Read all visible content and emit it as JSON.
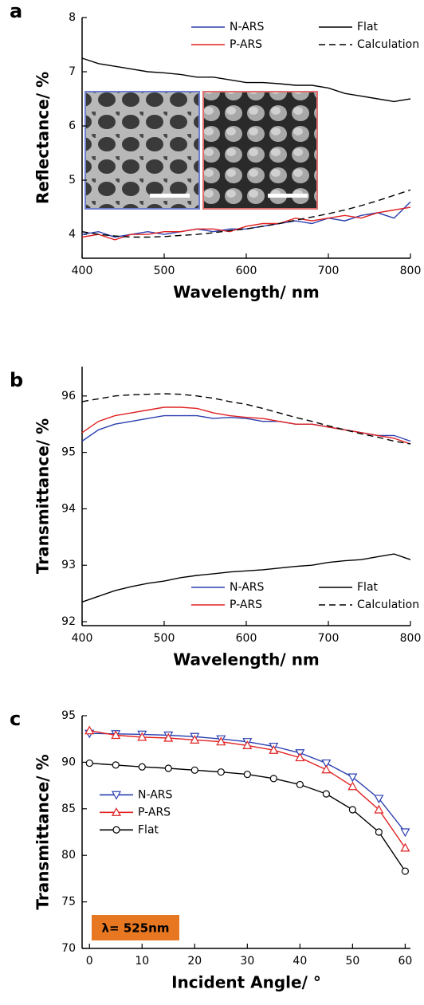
{
  "chart_data": [
    {
      "type": "line",
      "panel_label": "a",
      "x_label": "Wavelength/ nm",
      "y_label": "Reflectance/ %",
      "x": [
        400,
        420,
        440,
        460,
        480,
        500,
        520,
        540,
        560,
        580,
        600,
        620,
        640,
        660,
        680,
        700,
        720,
        740,
        760,
        780,
        800
      ],
      "xlim": [
        400,
        800
      ],
      "xticks": [
        400,
        500,
        600,
        700,
        800
      ],
      "ylim": [
        3.56,
        8
      ],
      "yticks": [
        4,
        5,
        6,
        7,
        8
      ],
      "legend": "top-right",
      "series": [
        {
          "name": "N-ARS",
          "color": "#2b3fb0",
          "style": "solid",
          "values": [
            4.0,
            4.05,
            3.95,
            4.0,
            4.05,
            4.0,
            4.05,
            4.1,
            4.05,
            4.1,
            4.1,
            4.15,
            4.2,
            4.25,
            4.2,
            4.3,
            4.25,
            4.35,
            4.4,
            4.3,
            4.6
          ]
        },
        {
          "name": "P-ARS",
          "color": "#e02020",
          "style": "solid",
          "values": [
            3.95,
            4.0,
            3.9,
            4.0,
            4.0,
            4.05,
            4.05,
            4.1,
            4.1,
            4.05,
            4.15,
            4.2,
            4.2,
            4.3,
            4.25,
            4.3,
            4.35,
            4.3,
            4.4,
            4.45,
            4.5
          ]
        },
        {
          "name": "Flat",
          "color": "#000000",
          "style": "solid",
          "values": [
            7.25,
            7.15,
            7.1,
            7.05,
            7.0,
            6.98,
            6.95,
            6.9,
            6.9,
            6.85,
            6.8,
            6.8,
            6.78,
            6.75,
            6.75,
            6.7,
            6.6,
            6.55,
            6.5,
            6.45,
            6.5
          ]
        },
        {
          "name": "Calculation",
          "color": "#000000",
          "style": "dashed",
          "values": [
            4.05,
            4.0,
            3.97,
            3.95,
            3.95,
            3.96,
            3.98,
            4.0,
            4.03,
            4.07,
            4.1,
            4.15,
            4.2,
            4.26,
            4.32,
            4.38,
            4.45,
            4.53,
            4.62,
            4.72,
            4.82
          ]
        }
      ]
    },
    {
      "type": "line",
      "panel_label": "b",
      "x_label": "Wavelength/ nm",
      "y_label": "Transmittance/ %",
      "x": [
        400,
        420,
        440,
        460,
        480,
        500,
        520,
        540,
        560,
        580,
        600,
        620,
        640,
        660,
        680,
        700,
        720,
        740,
        760,
        780,
        800
      ],
      "xlim": [
        400,
        800
      ],
      "xticks": [
        400,
        500,
        600,
        700,
        800
      ],
      "ylim": [
        91.93,
        96.52
      ],
      "yticks": [
        92,
        93,
        94,
        95,
        96
      ],
      "legend": "bottom-right",
      "series": [
        {
          "name": "N-ARS",
          "color": "#2b3fb0",
          "style": "solid",
          "values": [
            95.2,
            95.4,
            95.5,
            95.55,
            95.6,
            95.65,
            95.65,
            95.65,
            95.6,
            95.62,
            95.6,
            95.55,
            95.55,
            95.5,
            95.5,
            95.45,
            95.4,
            95.35,
            95.3,
            95.3,
            95.2
          ]
        },
        {
          "name": "P-ARS",
          "color": "#e02020",
          "style": "solid",
          "values": [
            95.35,
            95.55,
            95.65,
            95.7,
            95.75,
            95.8,
            95.8,
            95.78,
            95.7,
            95.65,
            95.62,
            95.6,
            95.55,
            95.5,
            95.5,
            95.45,
            95.4,
            95.35,
            95.3,
            95.25,
            95.15
          ]
        },
        {
          "name": "Flat",
          "color": "#000000",
          "style": "solid",
          "values": [
            92.35,
            92.45,
            92.55,
            92.62,
            92.68,
            92.72,
            92.78,
            92.82,
            92.85,
            92.88,
            92.9,
            92.92,
            92.95,
            92.98,
            93.0,
            93.05,
            93.08,
            93.1,
            93.15,
            93.2,
            93.1
          ]
        },
        {
          "name": "Calculation",
          "color": "#000000",
          "style": "dashed",
          "values": [
            95.9,
            95.95,
            96.0,
            96.02,
            96.03,
            96.04,
            96.03,
            96.0,
            95.96,
            95.9,
            95.85,
            95.78,
            95.7,
            95.62,
            95.55,
            95.47,
            95.4,
            95.33,
            95.27,
            95.2,
            95.15
          ]
        }
      ]
    },
    {
      "type": "line",
      "panel_label": "c",
      "x_label": "Incident Angle/ °",
      "y_label": "Transmittance/ %",
      "annotation": "λ= 525nm",
      "x": [
        0,
        5,
        10,
        15,
        20,
        25,
        30,
        35,
        40,
        45,
        50,
        55,
        60
      ],
      "xlim": [
        -1.4,
        61
      ],
      "xticks": [
        0,
        10,
        20,
        30,
        40,
        50,
        60
      ],
      "ylim": [
        70,
        95
      ],
      "yticks": [
        70,
        75,
        80,
        85,
        90,
        95
      ],
      "legend": "center-left",
      "series": [
        {
          "name": "N-ARS",
          "color": "#2b3fb0",
          "style": "solid",
          "marker": "triangle-down",
          "values": [
            93.1,
            93.05,
            93.0,
            92.9,
            92.75,
            92.5,
            92.2,
            91.7,
            91.0,
            89.9,
            88.4,
            86.1,
            82.5
          ]
        },
        {
          "name": "P-ARS",
          "color": "#e02020",
          "style": "solid",
          "marker": "triangle-up",
          "values": [
            93.4,
            92.9,
            92.7,
            92.6,
            92.4,
            92.2,
            91.8,
            91.3,
            90.5,
            89.2,
            87.4,
            84.9,
            80.8
          ]
        },
        {
          "name": "Flat",
          "color": "#000000",
          "style": "solid",
          "marker": "circle",
          "values": [
            89.9,
            89.7,
            89.5,
            89.35,
            89.15,
            88.95,
            88.7,
            88.25,
            87.6,
            86.6,
            84.9,
            82.5,
            78.3
          ]
        }
      ]
    }
  ]
}
